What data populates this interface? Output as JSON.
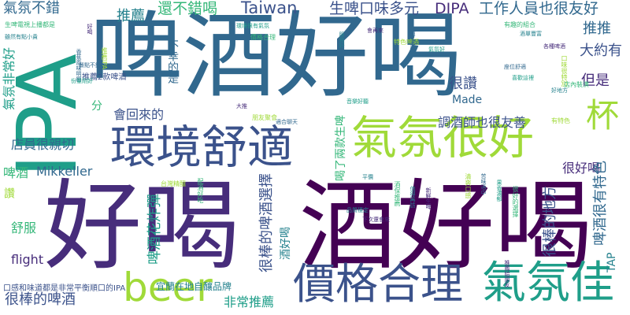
{
  "words": {
    "hao_he": "好喝",
    "pijiu_hao_he": "啤酒好喝",
    "jiu_hao_he": "酒好喝",
    "ipa": "IPA",
    "huanjing_shushi": "環境舒適",
    "qifen_hen_hao": "氣氛很好",
    "jiage_heli": "價格合理",
    "qifen_jia": "氣氛佳",
    "beer": "beer",
    "bei": "杯",
    "taiwan": "Taiwan",
    "dipa": "DIPA",
    "gongzuo_renyuan": "工作人員也很友好",
    "shengpi_kouwei": "生啤口味多元",
    "qifen_bu_cuo": "氣氛不錯",
    "haibucuo_he": "還不錯喝",
    "tuijian": "推薦",
    "tuitui": "推推",
    "da_yue_you": "大約有",
    "dan_shi": "但是",
    "hen_zan": "很讚",
    "made": "Made",
    "buxing_de_shi": "不幸的是",
    "hui_huilai_de": "會回來的",
    "tiaojiushi": "調酒師也很友善",
    "dianyuan": "店員很親切",
    "mikkeller": "Mikkeller",
    "pijiu": "啤酒",
    "shufu": "舒服",
    "zan": "讚",
    "flight": "flight",
    "pijiu_huazha": "啤酒花炸彈",
    "henbang_xuanze": "很棒的啤酒選擇",
    "henbang_pijiu": "很棒的啤酒",
    "feichang_tuijian": "非常推薦",
    "hen_hao_he": "很好喝",
    "pijiu_te_se": "啤酒很有特色",
    "hen_bang_difang": "很棒的地方",
    "tap": "TAP",
    "qifen_feichang_hao": "氣氛非常好",
    "fen": "分",
    "jiu_hao_he_small": "酒好喝",
    "yilan": "宜蘭在地自釀品牌",
    "kougan": "口感和味道都是非常平衡順口的IPA",
    "he_le_liangkuan": "喝了兩款生啤",
    "tuijian_two": "推薦2款啤酒"
  },
  "small_words": [
    "生啤電視上播都是",
    "雖然有點小貴",
    "好喝",
    "推薦IPA",
    "香蕉風味明顯",
    "環境很有氣氛",
    "價格合理",
    "服務好",
    "會再來",
    "特色啤酒",
    "值得一試",
    "氣氛好",
    "有趣的組合",
    "酒單豐富",
    "各種啤酒",
    "口味很特別",
    "座位舒適",
    "喜歡這裡",
    "店內裝潢",
    "好地方",
    "大推",
    "朋友聚會",
    "適合聊天",
    "音樂好聽",
    "酒保推薦",
    "值得再訪",
    "新鮮生啤",
    "清爽口感",
    "苦味適中",
    "果香濃郁",
    "很好的選擇",
    "品質穩定",
    "下次還會來",
    "台灣精釀",
    "餐點不錯",
    "份量剛好",
    "配酒好吃",
    "平價",
    "推薦給朋友",
    "有特色"
  ]
}
